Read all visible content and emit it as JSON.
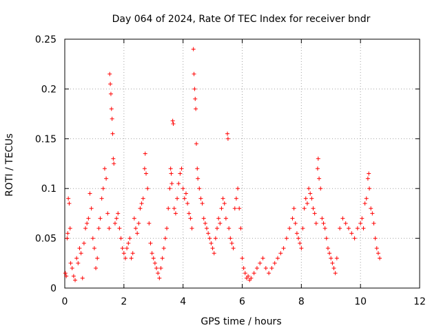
{
  "chart_data": {
    "type": "scatter",
    "title": "Day 064 of 2024, Rate Of TEC Index for receiver bndr",
    "xlabel": "GPS time / hours",
    "ylabel": "ROTI / TECUs",
    "xlim": [
      0,
      12
    ],
    "ylim": [
      0,
      0.25
    ],
    "xticks": [
      0,
      2,
      4,
      6,
      8,
      10,
      12
    ],
    "yticks": [
      0,
      0.05,
      0.1,
      0.15,
      0.2,
      0.25
    ],
    "xtick_labels": [
      "0",
      "2",
      "4",
      "6",
      "8",
      "10",
      "12"
    ],
    "ytick_labels": [
      "0",
      "0.05",
      "0.1",
      "0.15",
      "0.2",
      "0.25"
    ],
    "grid": true,
    "marker": "+",
    "series": [
      {
        "name": "ROTI",
        "color": "#ff0000",
        "description_hidden": true,
        "points": [
          [
            0.02,
            0.015
          ],
          [
            0.05,
            0.012
          ],
          [
            0.08,
            0.05
          ],
          [
            0.1,
            0.055
          ],
          [
            0.12,
            0.09
          ],
          [
            0.15,
            0.085
          ],
          [
            0.18,
            0.06
          ],
          [
            0.2,
            0.025
          ],
          [
            0.25,
            0.02
          ],
          [
            0.3,
            0.012
          ],
          [
            0.35,
            0.008
          ],
          [
            0.4,
            0.03
          ],
          [
            0.45,
            0.025
          ],
          [
            0.5,
            0.04
          ],
          [
            0.55,
            0.035
          ],
          [
            0.6,
            0.01
          ],
          [
            0.65,
            0.045
          ],
          [
            0.7,
            0.06
          ],
          [
            0.75,
            0.065
          ],
          [
            0.8,
            0.07
          ],
          [
            0.85,
            0.095
          ],
          [
            0.9,
            0.08
          ],
          [
            0.95,
            0.05
          ],
          [
            1.0,
            0.04
          ],
          [
            1.05,
            0.02
          ],
          [
            1.1,
            0.03
          ],
          [
            1.15,
            0.06
          ],
          [
            1.2,
            0.07
          ],
          [
            1.25,
            0.09
          ],
          [
            1.3,
            0.1
          ],
          [
            1.35,
            0.12
          ],
          [
            1.4,
            0.11
          ],
          [
            1.45,
            0.075
          ],
          [
            1.5,
            0.06
          ],
          [
            1.52,
            0.215
          ],
          [
            1.54,
            0.205
          ],
          [
            1.56,
            0.195
          ],
          [
            1.58,
            0.18
          ],
          [
            1.6,
            0.17
          ],
          [
            1.62,
            0.155
          ],
          [
            1.64,
            0.13
          ],
          [
            1.66,
            0.125
          ],
          [
            1.7,
            0.065
          ],
          [
            1.75,
            0.07
          ],
          [
            1.8,
            0.075
          ],
          [
            1.85,
            0.06
          ],
          [
            1.9,
            0.05
          ],
          [
            1.95,
            0.04
          ],
          [
            2.0,
            0.035
          ],
          [
            2.05,
            0.03
          ],
          [
            2.1,
            0.04
          ],
          [
            2.15,
            0.045
          ],
          [
            2.2,
            0.05
          ],
          [
            2.25,
            0.03
          ],
          [
            2.3,
            0.035
          ],
          [
            2.35,
            0.07
          ],
          [
            2.4,
            0.06
          ],
          [
            2.45,
            0.055
          ],
          [
            2.5,
            0.065
          ],
          [
            2.55,
            0.08
          ],
          [
            2.6,
            0.085
          ],
          [
            2.65,
            0.09
          ],
          [
            2.7,
            0.12
          ],
          [
            2.72,
            0.135
          ],
          [
            2.75,
            0.115
          ],
          [
            2.8,
            0.1
          ],
          [
            2.85,
            0.065
          ],
          [
            2.9,
            0.045
          ],
          [
            2.95,
            0.035
          ],
          [
            3.0,
            0.03
          ],
          [
            3.05,
            0.025
          ],
          [
            3.1,
            0.02
          ],
          [
            3.15,
            0.015
          ],
          [
            3.2,
            0.01
          ],
          [
            3.25,
            0.02
          ],
          [
            3.3,
            0.03
          ],
          [
            3.35,
            0.04
          ],
          [
            3.4,
            0.05
          ],
          [
            3.45,
            0.06
          ],
          [
            3.5,
            0.08
          ],
          [
            3.55,
            0.1
          ],
          [
            3.58,
            0.12
          ],
          [
            3.6,
            0.115
          ],
          [
            3.62,
            0.105
          ],
          [
            3.65,
            0.168
          ],
          [
            3.67,
            0.165
          ],
          [
            3.7,
            0.08
          ],
          [
            3.75,
            0.075
          ],
          [
            3.8,
            0.09
          ],
          [
            3.85,
            0.105
          ],
          [
            3.9,
            0.115
          ],
          [
            3.95,
            0.12
          ],
          [
            4.0,
            0.1
          ],
          [
            4.05,
            0.09
          ],
          [
            4.1,
            0.095
          ],
          [
            4.15,
            0.085
          ],
          [
            4.2,
            0.075
          ],
          [
            4.25,
            0.07
          ],
          [
            4.3,
            0.06
          ],
          [
            4.35,
            0.24
          ],
          [
            4.37,
            0.215
          ],
          [
            4.39,
            0.2
          ],
          [
            4.41,
            0.19
          ],
          [
            4.43,
            0.18
          ],
          [
            4.45,
            0.145
          ],
          [
            4.48,
            0.12
          ],
          [
            4.5,
            0.11
          ],
          [
            4.55,
            0.1
          ],
          [
            4.6,
            0.09
          ],
          [
            4.65,
            0.085
          ],
          [
            4.7,
            0.07
          ],
          [
            4.75,
            0.065
          ],
          [
            4.8,
            0.06
          ],
          [
            4.85,
            0.055
          ],
          [
            4.9,
            0.05
          ],
          [
            4.95,
            0.045
          ],
          [
            5.0,
            0.04
          ],
          [
            5.05,
            0.035
          ],
          [
            5.1,
            0.05
          ],
          [
            5.15,
            0.06
          ],
          [
            5.2,
            0.07
          ],
          [
            5.25,
            0.065
          ],
          [
            5.3,
            0.08
          ],
          [
            5.35,
            0.09
          ],
          [
            5.4,
            0.085
          ],
          [
            5.45,
            0.07
          ],
          [
            5.5,
            0.155
          ],
          [
            5.52,
            0.15
          ],
          [
            5.55,
            0.06
          ],
          [
            5.6,
            0.05
          ],
          [
            5.65,
            0.045
          ],
          [
            5.7,
            0.04
          ],
          [
            5.75,
            0.08
          ],
          [
            5.8,
            0.09
          ],
          [
            5.85,
            0.1
          ],
          [
            5.9,
            0.08
          ],
          [
            5.95,
            0.06
          ],
          [
            6.0,
            0.03
          ],
          [
            6.05,
            0.02
          ],
          [
            6.1,
            0.015
          ],
          [
            6.15,
            0.01
          ],
          [
            6.2,
            0.012
          ],
          [
            6.25,
            0.008
          ],
          [
            6.3,
            0.01
          ],
          [
            6.4,
            0.015
          ],
          [
            6.5,
            0.02
          ],
          [
            6.6,
            0.025
          ],
          [
            6.7,
            0.03
          ],
          [
            6.8,
            0.02
          ],
          [
            6.9,
            0.015
          ],
          [
            7.0,
            0.02
          ],
          [
            7.1,
            0.025
          ],
          [
            7.2,
            0.03
          ],
          [
            7.3,
            0.035
          ],
          [
            7.4,
            0.04
          ],
          [
            7.5,
            0.05
          ],
          [
            7.6,
            0.06
          ],
          [
            7.7,
            0.07
          ],
          [
            7.75,
            0.08
          ],
          [
            7.8,
            0.065
          ],
          [
            7.85,
            0.055
          ],
          [
            7.9,
            0.05
          ],
          [
            7.95,
            0.045
          ],
          [
            8.0,
            0.04
          ],
          [
            8.05,
            0.06
          ],
          [
            8.1,
            0.08
          ],
          [
            8.15,
            0.09
          ],
          [
            8.2,
            0.085
          ],
          [
            8.25,
            0.1
          ],
          [
            8.3,
            0.095
          ],
          [
            8.35,
            0.09
          ],
          [
            8.4,
            0.08
          ],
          [
            8.45,
            0.075
          ],
          [
            8.5,
            0.065
          ],
          [
            8.55,
            0.12
          ],
          [
            8.57,
            0.13
          ],
          [
            8.6,
            0.11
          ],
          [
            8.65,
            0.1
          ],
          [
            8.7,
            0.07
          ],
          [
            8.75,
            0.065
          ],
          [
            8.8,
            0.06
          ],
          [
            8.85,
            0.05
          ],
          [
            8.9,
            0.04
          ],
          [
            8.95,
            0.035
          ],
          [
            9.0,
            0.03
          ],
          [
            9.05,
            0.025
          ],
          [
            9.1,
            0.02
          ],
          [
            9.15,
            0.015
          ],
          [
            9.2,
            0.03
          ],
          [
            9.3,
            0.06
          ],
          [
            9.4,
            0.07
          ],
          [
            9.5,
            0.065
          ],
          [
            9.6,
            0.06
          ],
          [
            9.7,
            0.055
          ],
          [
            9.8,
            0.05
          ],
          [
            9.9,
            0.06
          ],
          [
            10.0,
            0.065
          ],
          [
            10.05,
            0.07
          ],
          [
            10.1,
            0.06
          ],
          [
            10.15,
            0.085
          ],
          [
            10.2,
            0.09
          ],
          [
            10.25,
            0.11
          ],
          [
            10.28,
            0.115
          ],
          [
            10.3,
            0.1
          ],
          [
            10.35,
            0.08
          ],
          [
            10.4,
            0.075
          ],
          [
            10.45,
            0.065
          ],
          [
            10.5,
            0.05
          ],
          [
            10.55,
            0.04
          ],
          [
            10.6,
            0.035
          ],
          [
            10.65,
            0.03
          ]
        ]
      }
    ]
  }
}
